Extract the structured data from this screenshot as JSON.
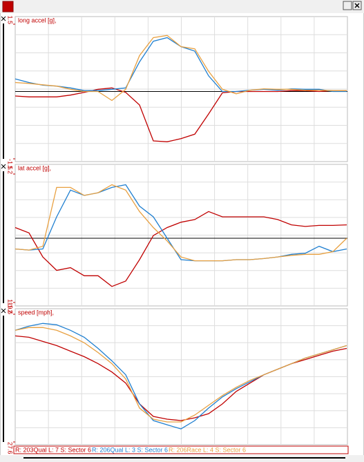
{
  "chart_data": [
    {
      "type": "line",
      "title": "long accel [g],",
      "ylim": [
        -1.5,
        1.5
      ],
      "yticks": [
        1.5,
        -1.5
      ],
      "grid": true,
      "zero_line": true,
      "series": [
        {
          "name": "R: 203Qual  L: 7  S: Sector 6",
          "color": "#c00000",
          "values": [
            -0.1,
            -0.12,
            -0.12,
            -0.12,
            -0.08,
            -0.02,
            0.05,
            0.08,
            -0.02,
            -0.3,
            -1.1,
            -1.12,
            -1.05,
            -0.95,
            -0.5,
            -0.03,
            0,
            0,
            0,
            0,
            0.02,
            0.02,
            0,
            0.02,
            0.02
          ]
        },
        {
          "name": "R: 206Qual  L: 3  S: Sector 6",
          "color": "#1f7fd0",
          "values": [
            0.28,
            0.2,
            0.14,
            0.12,
            0.08,
            0.02,
            0.02,
            0.05,
            0.08,
            0.66,
            1.12,
            1.2,
            1.0,
            0.9,
            0.35,
            0,
            0,
            0.03,
            0.05,
            0.03,
            0.06,
            0.05,
            0.05,
            0,
            0
          ]
        },
        {
          "name": "R: 206Race  L: 4  S: Sector 6",
          "color": "#e8a040",
          "values": [
            0.2,
            0.18,
            0.15,
            0.12,
            0.05,
            0,
            0,
            -0.2,
            0.05,
            0.8,
            1.2,
            1.25,
            1.0,
            0.95,
            0.45,
            0.05,
            -0.05,
            0.03,
            0.06,
            0.05,
            0.05,
            0.03,
            0.03,
            0.02,
            0.02
          ]
        }
      ]
    },
    {
      "type": "line",
      "title": "lat accel [g],",
      "ylim": [
        -1.2,
        1.2
      ],
      "yticks": [
        1.2,
        -1.2
      ],
      "grid": true,
      "zero_line": true,
      "series": [
        {
          "name": "R: 203Qual  L: 7  S: Sector 6",
          "color": "#c00000",
          "values": [
            0.2,
            0.1,
            -0.35,
            -0.6,
            -0.55,
            -0.7,
            -0.7,
            -0.9,
            -0.8,
            -0.4,
            0.05,
            0.2,
            0.3,
            0.35,
            0.5,
            0.4,
            0.4,
            0.4,
            0.4,
            0.35,
            0.25,
            0.22,
            0.24,
            0.24,
            0.25
          ]
        },
        {
          "name": "R: 206Qual  L: 3  S: Sector 6",
          "color": "#1f7fd0",
          "values": [
            -0.2,
            -0.22,
            -0.2,
            0.4,
            0.9,
            0.8,
            0.85,
            0.95,
            1.0,
            0.6,
            0.4,
            0,
            -0.4,
            -0.42,
            -0.42,
            -0.42,
            -0.4,
            -0.4,
            -0.38,
            -0.35,
            -0.3,
            -0.28,
            -0.15,
            -0.25,
            -0.2
          ]
        },
        {
          "name": "R: 206Race  L: 4  S: Sector 6",
          "color": "#e8a040",
          "values": [
            -0.2,
            -0.22,
            -0.15,
            0.95,
            0.95,
            0.8,
            0.85,
            1.0,
            0.9,
            0.5,
            0.2,
            -0.05,
            -0.35,
            -0.42,
            -0.42,
            -0.42,
            -0.4,
            -0.4,
            -0.38,
            -0.35,
            -0.32,
            -0.3,
            -0.3,
            -0.25,
            0
          ]
        }
      ]
    },
    {
      "type": "line",
      "title": "speed [mph],",
      "ylim": [
        27.6,
        119.6
      ],
      "yticks": [
        119.6,
        27.6
      ],
      "grid": true,
      "zero_line": false,
      "series": [
        {
          "name": "R: 203Qual  L: 7  S: Sector 6",
          "color": "#c00000",
          "values": [
            104,
            103,
            100,
            97,
            93,
            89,
            84,
            78,
            70,
            55,
            46,
            44,
            43,
            45,
            48,
            55,
            64,
            70,
            76,
            80,
            84,
            87,
            90,
            93,
            95
          ]
        },
        {
          "name": "R: 206Qual  L: 3  S: Sector 6",
          "color": "#1f7fd0",
          "values": [
            108,
            111,
            113,
            112,
            108,
            103,
            95,
            86,
            76,
            55,
            43,
            40,
            37,
            43,
            52,
            60,
            66,
            71,
            76,
            80,
            84,
            88,
            91,
            94,
            97
          ]
        },
        {
          "name": "R: 206Race  L: 4  S: Sector 6",
          "color": "#e8a040",
          "values": [
            108,
            110,
            110,
            108,
            104,
            99,
            92,
            84,
            73,
            52,
            44,
            42,
            42,
            47,
            54,
            61,
            67,
            72,
            76,
            80,
            84,
            88,
            91,
            94,
            97
          ]
        }
      ]
    }
  ]
}
